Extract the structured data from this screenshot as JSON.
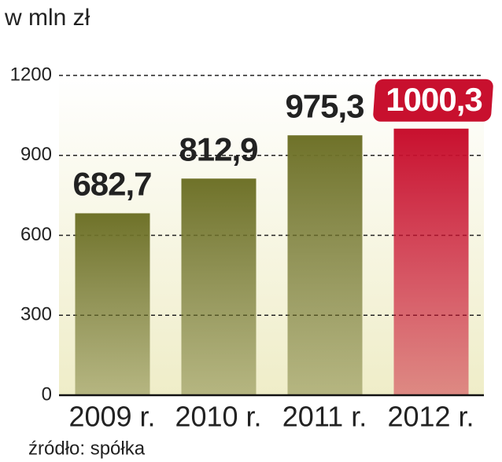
{
  "chart_data": {
    "type": "bar",
    "title": "w mln zł",
    "categories": [
      "2009 r.",
      "2010 r.",
      "2011 r.",
      "2012 r."
    ],
    "values": [
      682.7,
      812.9,
      975.3,
      1000.3
    ],
    "value_labels": [
      "682,7",
      "812,9",
      "975,3",
      "1000,3"
    ],
    "colors": [
      "#6f7229",
      "#6f7229",
      "#6f7229",
      "#c8102e"
    ],
    "highlight": 3,
    "ylim": [
      0,
      1200
    ],
    "yticks": [
      0,
      300,
      600,
      900,
      1200
    ],
    "grid": true,
    "source": "źródło: spółka"
  }
}
